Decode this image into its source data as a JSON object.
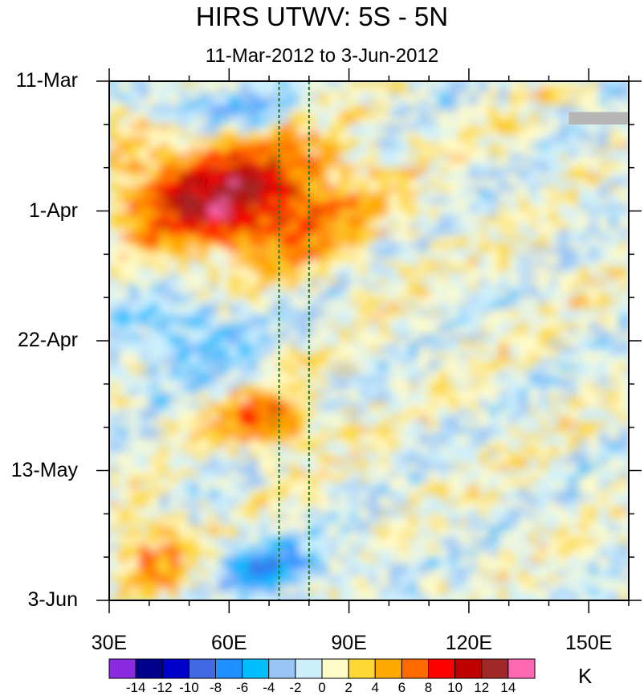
{
  "title": "HIRS UTWV: 5S - 5N",
  "subtitle": "11-Mar-2012 to 3-Jun-2012",
  "chart_data": {
    "type": "heatmap",
    "title": "HIRS UTWV: 5S - 5N",
    "subtitle": "11-Mar-2012 to 3-Jun-2012",
    "xlabel": "",
    "ylabel": "",
    "x_ticks": [
      "30E",
      "60E",
      "90E",
      "120E",
      "150E"
    ],
    "x_tick_values": [
      30,
      60,
      90,
      120,
      150
    ],
    "xlim": [
      30,
      160
    ],
    "y_ticks": [
      "11-Mar",
      "1-Apr",
      "22-Apr",
      "13-May",
      "3-Jun"
    ],
    "y_tick_days": [
      0,
      21,
      42,
      63,
      84
    ],
    "ylim_days": [
      0,
      84
    ],
    "units": "K",
    "colorbar_levels": [
      "-14",
      "-12",
      "-10",
      "-8",
      "-6",
      "-4",
      "-2",
      "0",
      "2",
      "4",
      "6",
      "8",
      "10",
      "12",
      "14"
    ],
    "colorbar_colors": [
      "#8a2be2",
      "#00008b",
      "#0000cd",
      "#4169e1",
      "#1e90ff",
      "#00bfff",
      "#9ac6f5",
      "#cdeffc",
      "#fffbc8",
      "#fdd835",
      "#ffaa00",
      "#ff6a00",
      "#ff0000",
      "#c00000",
      "#a02828",
      "#ff69b4"
    ],
    "reference_lines_lon": [
      72.5,
      80
    ],
    "features": [
      {
        "description": "strong positive anomaly",
        "lon_range": [
          30,
          95
        ],
        "day_range": [
          8,
          30
        ],
        "value": 12
      },
      {
        "description": "positive anomaly band",
        "lon_range": [
          55,
          85
        ],
        "day_range": [
          50,
          60
        ],
        "value": 8
      },
      {
        "description": "negative anomaly",
        "lon_range": [
          40,
          80
        ],
        "day_range": [
          1,
          8
        ],
        "value": -6
      },
      {
        "description": "negative anomaly",
        "lon_range": [
          30,
          70
        ],
        "day_range": [
          32,
          50
        ],
        "value": -4
      },
      {
        "description": "negative anomaly",
        "lon_range": [
          50,
          90
        ],
        "day_range": [
          74,
          84
        ],
        "value": -6
      },
      {
        "description": "positive anomaly",
        "lon_range": [
          30,
          55
        ],
        "day_range": [
          70,
          84
        ],
        "value": 6
      },
      {
        "description": "missing data",
        "lon_range": [
          145,
          160
        ],
        "day_range": [
          5,
          7
        ],
        "value": null
      }
    ]
  }
}
